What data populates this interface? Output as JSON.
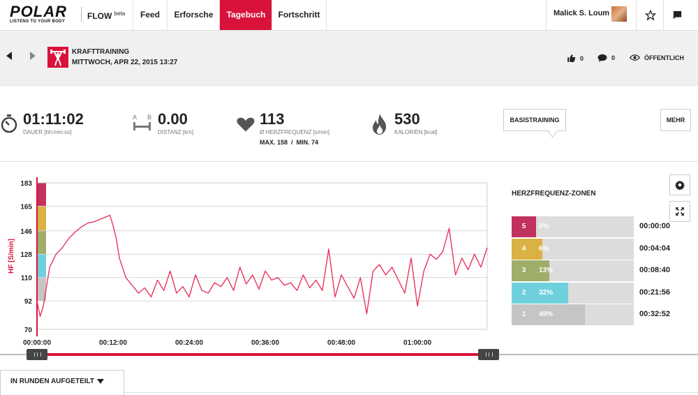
{
  "nav": {
    "logo": "POLAR",
    "logo_tagline": "LISTENS TO YOUR BODY",
    "flow": "FLOW",
    "flow_sup": "beta",
    "items": [
      {
        "label": "Feed"
      },
      {
        "label": "Erforsche"
      },
      {
        "label": "Tagebuch"
      },
      {
        "label": "Fortschritt"
      }
    ],
    "active": "Tagebuch",
    "user_name": "Malick S. Loum"
  },
  "session": {
    "sport": "KRAFTTRAINING",
    "date": "MITTWOCH, APR 22, 2015 13:27",
    "likes": "0",
    "comments": "0",
    "visibility": "ÖFFENTLICH"
  },
  "stats": {
    "duration": {
      "value": "01:11:02",
      "label": "DAUER [hh:mm:ss]"
    },
    "distance": {
      "value": "0.00",
      "label": "DISTANZ [km]"
    },
    "heart_rate": {
      "value": "113",
      "label": "Ø HERZFREQUENZ [s/min]",
      "sub": "MAX. 158  /  MIN. 74"
    },
    "calories": {
      "value": "530",
      "label": "KALORIEN [kcal]"
    },
    "distance_icon_letters": [
      "A",
      "B"
    ]
  },
  "buttons": {
    "basis": "BASISTRAINING",
    "mehr": "MEHR",
    "runden": "IN RUNDEN AUFGETEILT"
  },
  "colors": {
    "accent": "#d9123b",
    "zone5": "#c2325e",
    "zone4": "#d9b243",
    "zone3": "#9fae6b",
    "zone2": "#6fd0dd",
    "zone1": "#c5c5c5"
  },
  "chart_data": {
    "type": "line",
    "ylabel": "HF [S/min]",
    "xlabel": "",
    "ylim": [
      70,
      183
    ],
    "yticks": [
      183,
      165,
      146,
      128,
      110,
      92,
      70
    ],
    "xticks": [
      "00:00:00",
      "00:12:00",
      "00:24:00",
      "00:36:00",
      "00:48:00",
      "01:00:00"
    ],
    "xlim_min": [
      0,
      71
    ],
    "series": [
      {
        "x": [
          0,
          0.5,
          1,
          1.5,
          2,
          3,
          4,
          5,
          6,
          7,
          8,
          9,
          10,
          10.5,
          11,
          11.5,
          12,
          12.5,
          13,
          14,
          15,
          16,
          17,
          18,
          19,
          20,
          21,
          22,
          23,
          24,
          25,
          26,
          27,
          28,
          29,
          30,
          31,
          32,
          33,
          34,
          35,
          36,
          37,
          38,
          39,
          40,
          41,
          42,
          43,
          44,
          45,
          46,
          47,
          48,
          49,
          50,
          51,
          52,
          53,
          54,
          55,
          56,
          57,
          58,
          59,
          60,
          61,
          62,
          63,
          64,
          65,
          66,
          67,
          68,
          69,
          70,
          71
        ],
        "values": [
          92,
          80,
          88,
          103,
          118,
          128,
          133,
          140,
          145,
          149,
          152,
          153,
          155,
          156,
          157,
          158,
          150,
          140,
          125,
          110,
          104,
          98,
          102,
          95,
          108,
          100,
          115,
          98,
          103,
          95,
          112,
          100,
          98,
          106,
          103,
          110,
          100,
          118,
          105,
          112,
          101,
          115,
          108,
          110,
          104,
          106,
          100,
          112,
          102,
          108,
          100,
          132,
          95,
          112,
          103,
          94,
          110,
          82,
          115,
          120,
          112,
          118,
          108,
          98,
          125,
          88,
          115,
          128,
          124,
          130,
          148,
          112,
          125,
          116,
          128,
          118,
          133
        ]
      }
    ],
    "zones": [
      {
        "zone": "5",
        "percent": 0,
        "percent_label": "0%",
        "time": "00:00:00"
      },
      {
        "zone": "4",
        "percent": 6,
        "percent_label": "6%",
        "time": "00:04:04"
      },
      {
        "zone": "3",
        "percent": 13,
        "percent_label": "13%",
        "time": "00:08:40"
      },
      {
        "zone": "2",
        "percent": 32,
        "percent_label": "32%",
        "time": "00:21:56"
      },
      {
        "zone": "1",
        "percent": 49,
        "percent_label": "49%",
        "time": "00:32:52"
      }
    ],
    "zones_title": "HERZFREQUENZ-ZONEN"
  }
}
